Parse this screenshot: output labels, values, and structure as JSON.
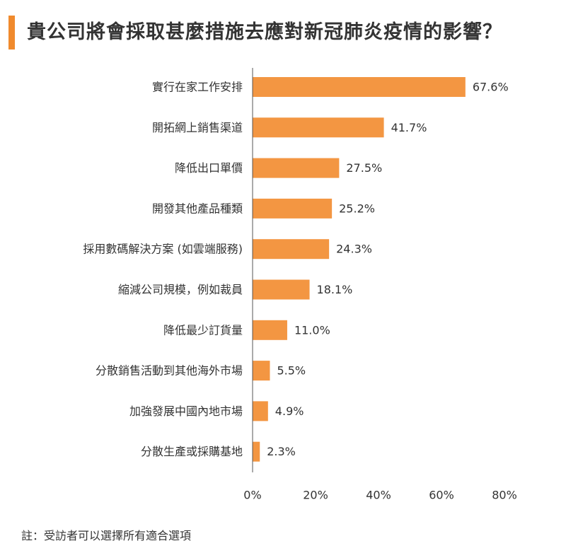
{
  "header": {
    "title": "貴公司將會採取甚麼措施去應對新冠肺炎疫情的影響？"
  },
  "footnote": "註：受訪者可以選擇所有適合選項",
  "colors": {
    "accent": "#f08a2d",
    "bar": "#f39642",
    "text": "#333333",
    "axis": "#555555"
  },
  "chart_data": {
    "type": "bar",
    "orientation": "horizontal",
    "title": "貴公司將會採取甚麼措施去應對新冠肺炎疫情的影響？",
    "categories": [
      "實行在家工作安排",
      "開拓網上銷售渠道",
      "降低出口單價",
      "開發其他產品種類",
      "採用數碼解決方案 (如雲端服務)",
      "縮減公司規模，例如裁員",
      "降低最少訂貨量",
      "分散銷售活動到其他海外市場",
      "加強發展中國內地市場",
      "分散生產或採購基地"
    ],
    "values": [
      67.6,
      41.7,
      27.5,
      25.2,
      24.3,
      18.1,
      11.0,
      5.5,
      4.9,
      2.3
    ],
    "value_labels": [
      "67.6%",
      "41.7%",
      "27.5%",
      "25.2%",
      "24.3%",
      "18.1%",
      "11.0%",
      "5.5%",
      "4.9%",
      "2.3%"
    ],
    "xlim": [
      0,
      80
    ],
    "x_ticks": [
      0,
      20,
      40,
      60,
      80
    ],
    "x_tick_labels": [
      "0%",
      "20%",
      "40%",
      "60%",
      "80%"
    ],
    "grid": false,
    "legend": "none"
  }
}
